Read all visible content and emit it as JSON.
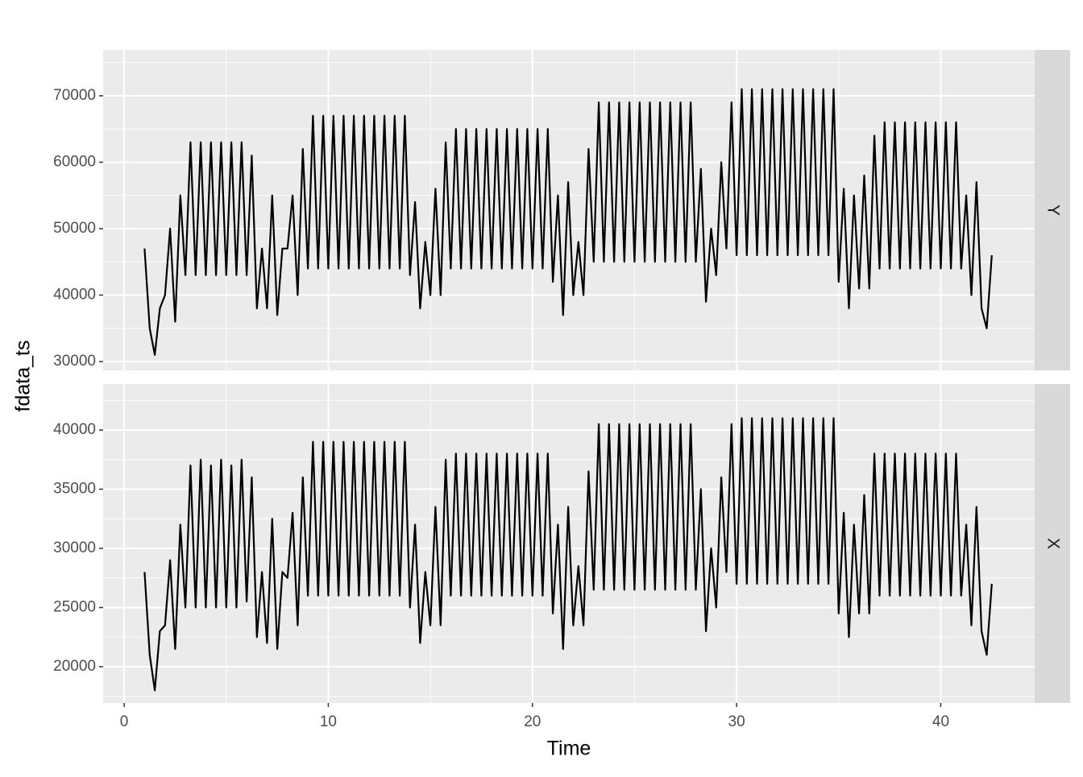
{
  "chart_data": {
    "type": "line",
    "x_label": "Time",
    "y_label": "fdata_ts",
    "color": "#000000",
    "grid": true,
    "xlim": [
      -1.03,
      44.6
    ],
    "xticks": [
      0,
      10,
      20,
      30,
      40
    ],
    "x": [
      1,
      1.25,
      1.5,
      1.75,
      2,
      2.25,
      2.5,
      2.75,
      3,
      3.25,
      3.5,
      3.75,
      4,
      4.25,
      4.5,
      4.75,
      5,
      5.25,
      5.5,
      5.75,
      6,
      6.25,
      6.5,
      6.75,
      7,
      7.25,
      7.5,
      7.75,
      8,
      8.25,
      8.5,
      8.75,
      9,
      9.25,
      9.5,
      9.75,
      10,
      10.25,
      10.5,
      10.75,
      11,
      11.25,
      11.5,
      11.75,
      12,
      12.25,
      12.5,
      12.75,
      13,
      13.25,
      13.5,
      13.75,
      14,
      14.25,
      14.5,
      14.75,
      15,
      15.25,
      15.5,
      15.75,
      16,
      16.25,
      16.5,
      16.75,
      17,
      17.25,
      17.5,
      17.75,
      18,
      18.25,
      18.5,
      18.75,
      19,
      19.25,
      19.5,
      19.75,
      20,
      20.25,
      20.5,
      20.75,
      21,
      21.25,
      21.5,
      21.75,
      22,
      22.25,
      22.5,
      22.75,
      23,
      23.25,
      23.5,
      23.75,
      24,
      24.25,
      24.5,
      24.75,
      25,
      25.25,
      25.5,
      25.75,
      26,
      26.25,
      26.5,
      26.75,
      27,
      27.25,
      27.5,
      27.75,
      28,
      28.25,
      28.5,
      28.75,
      29,
      29.25,
      29.5,
      29.75,
      30,
      30.25,
      30.5,
      30.75,
      31,
      31.25,
      31.5,
      31.75,
      32,
      32.25,
      32.5,
      32.75,
      33,
      33.25,
      33.5,
      33.75,
      34,
      34.25,
      34.5,
      34.75,
      35,
      35.25,
      35.5,
      35.75,
      36,
      36.25,
      36.5,
      36.75,
      37,
      37.25,
      37.5,
      37.75,
      38,
      38.25,
      38.5,
      38.75,
      39,
      39.25,
      39.5,
      39.75,
      40,
      40.25,
      40.5,
      40.75,
      41,
      41.25,
      41.5,
      41.75,
      42,
      42.25,
      42.5
    ],
    "panels": [
      {
        "name": "Y",
        "ylim": [
          28670,
          76900
        ],
        "yticks": [
          30000,
          40000,
          50000,
          60000,
          70000
        ],
        "values": [
          47000,
          35000,
          31000,
          38000,
          40000,
          50000,
          36000,
          55000,
          43000,
          63000,
          43000,
          63000,
          43000,
          63000,
          43000,
          63000,
          43000,
          63000,
          43000,
          63000,
          43000,
          61000,
          38000,
          47000,
          38000,
          55000,
          37000,
          47000,
          47000,
          55000,
          40000,
          62000,
          44000,
          67000,
          44000,
          67000,
          44000,
          67000,
          44000,
          67000,
          44000,
          67000,
          44000,
          67000,
          44000,
          67000,
          44000,
          67000,
          44000,
          67000,
          44000,
          67000,
          43000,
          54000,
          38000,
          48000,
          40000,
          56000,
          40000,
          63000,
          44000,
          65000,
          44000,
          65000,
          44000,
          65000,
          44000,
          65000,
          44000,
          65000,
          44000,
          65000,
          44000,
          65000,
          44000,
          65000,
          44000,
          65000,
          44000,
          65000,
          42000,
          55000,
          37000,
          57000,
          40000,
          48000,
          40000,
          62000,
          45000,
          69000,
          45000,
          69000,
          45000,
          69000,
          45000,
          69000,
          45000,
          69000,
          45000,
          69000,
          45000,
          69000,
          45000,
          69000,
          45000,
          69000,
          45000,
          69000,
          45000,
          59000,
          39000,
          50000,
          43000,
          60000,
          47000,
          69000,
          46000,
          71000,
          46000,
          71000,
          46000,
          71000,
          46000,
          71000,
          46000,
          71000,
          46000,
          71000,
          46000,
          71000,
          46000,
          71000,
          46000,
          71000,
          46000,
          71000,
          42000,
          56000,
          38000,
          55000,
          41000,
          58000,
          41000,
          64000,
          44000,
          66000,
          44000,
          66000,
          44000,
          66000,
          44000,
          66000,
          44000,
          66000,
          44000,
          66000,
          44000,
          66000,
          44000,
          66000,
          44000,
          55000,
          40000,
          57000,
          38000,
          35000,
          46000
        ]
      },
      {
        "name": "X",
        "ylim": [
          16940,
          43880
        ],
        "yticks": [
          20000,
          25000,
          30000,
          35000,
          40000
        ],
        "values": [
          28000,
          21000,
          18000,
          23000,
          23500,
          29000,
          21500,
          32000,
          25000,
          37000,
          25000,
          37500,
          25000,
          37000,
          25000,
          37500,
          25000,
          37000,
          25000,
          37500,
          25500,
          36000,
          22500,
          28000,
          22000,
          32500,
          21500,
          28000,
          27500,
          33000,
          23500,
          36000,
          26000,
          39000,
          26000,
          39000,
          26000,
          39000,
          26000,
          39000,
          26000,
          39000,
          26000,
          39000,
          26000,
          39000,
          26000,
          39000,
          26000,
          39000,
          26000,
          39000,
          25000,
          32000,
          22000,
          28000,
          23500,
          33500,
          23500,
          37500,
          26000,
          38000,
          26000,
          38000,
          26000,
          38000,
          26000,
          38000,
          26000,
          38000,
          26000,
          38000,
          26000,
          38000,
          26000,
          38000,
          26000,
          38000,
          26000,
          38000,
          24500,
          32000,
          21500,
          33500,
          23500,
          28500,
          23500,
          36500,
          26500,
          40500,
          26500,
          40500,
          26500,
          40500,
          26500,
          40500,
          26500,
          40500,
          26500,
          40500,
          26500,
          40500,
          26500,
          40500,
          26500,
          40500,
          26500,
          40500,
          26500,
          35000,
          23000,
          30000,
          25000,
          36000,
          28000,
          40500,
          27000,
          41000,
          27000,
          41000,
          27000,
          41000,
          27000,
          41000,
          27000,
          41000,
          27000,
          41000,
          27000,
          41000,
          27000,
          41000,
          27000,
          41000,
          27000,
          41000,
          24500,
          33000,
          22500,
          32000,
          24500,
          34500,
          24500,
          38000,
          26000,
          38000,
          26000,
          38000,
          26000,
          38000,
          26000,
          38000,
          26000,
          38000,
          26000,
          38000,
          26000,
          38000,
          26000,
          38000,
          26000,
          32000,
          23500,
          33500,
          23000,
          21000,
          27000
        ]
      }
    ]
  }
}
